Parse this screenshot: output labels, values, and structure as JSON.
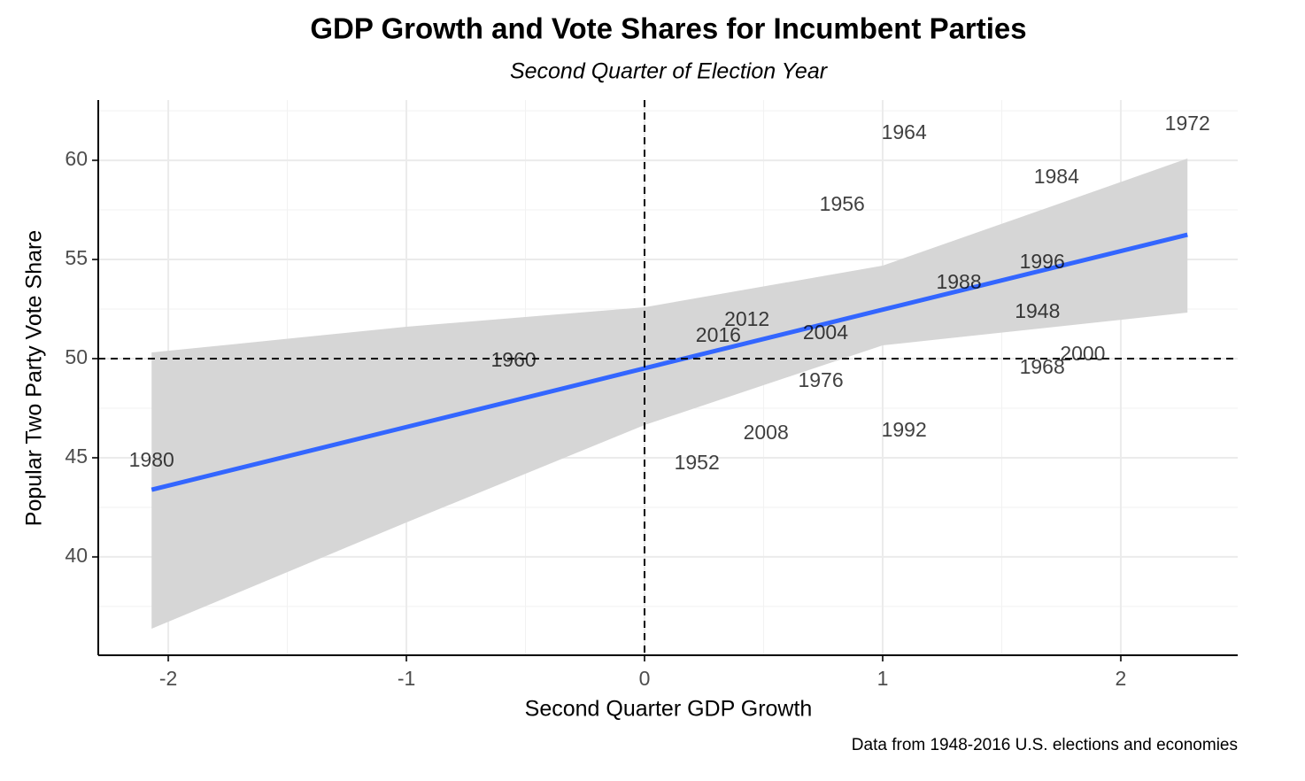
{
  "chart_data": {
    "type": "scatter",
    "title": "GDP Growth and Vote Shares for Incumbent Parties",
    "subtitle": "Second Quarter of Election Year",
    "x_label": "Second Quarter GDP Growth",
    "y_label": "Popular Two Party Vote Share",
    "caption": "Data from 1948-2016 U.S. elections and economies",
    "labels": [
      "1964",
      "1972",
      "1984",
      "1956",
      "1996",
      "1988",
      "1948",
      "2012",
      "2016",
      "2004",
      "1960",
      "2000",
      "1968",
      "1976",
      "2008",
      "1992",
      "1952",
      "1980"
    ],
    "x": [
      1.09,
      2.28,
      1.73,
      0.83,
      1.67,
      1.32,
      1.65,
      0.43,
      0.31,
      0.76,
      -0.55,
      1.84,
      1.67,
      0.74,
      0.51,
      1.09,
      0.22,
      -2.07
    ],
    "y": [
      61.34,
      61.79,
      59.11,
      57.72,
      54.82,
      53.79,
      52.32,
      51.92,
      51.12,
      51.25,
      49.87,
      50.18,
      49.51,
      48.84,
      46.21,
      46.34,
      44.69,
      44.82
    ],
    "fit": {
      "x": [
        -2.07,
        -1,
        0,
        1,
        2.28
      ],
      "y": [
        43.39,
        46.55,
        49.51,
        52.47,
        56.25
      ],
      "lower": [
        36.38,
        41.74,
        46.65,
        50.67,
        52.32
      ],
      "upper": [
        50.31,
        51.61,
        52.59,
        54.69,
        60.09
      ],
      "color": "#3366ff",
      "band_color": "#d6d6d6"
    },
    "hline": 50,
    "vline": 0,
    "xlim": [
      -2.294,
      2.491
    ],
    "ylim": [
      35.04,
      63.04
    ],
    "xticks": [
      -2,
      -1,
      0,
      1,
      2
    ],
    "yticks": [
      40,
      45,
      50,
      55,
      60
    ],
    "grid": true
  }
}
